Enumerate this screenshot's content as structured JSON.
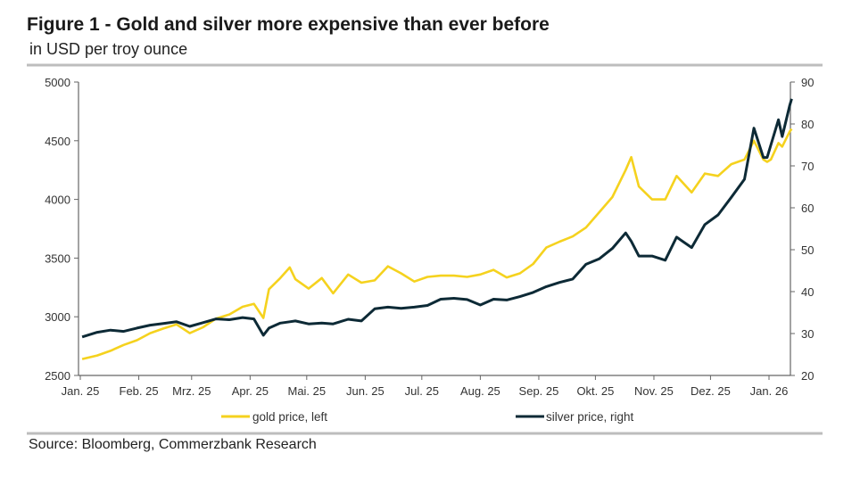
{
  "chart_data": {
    "type": "line",
    "title": "Figure 1 - Gold and silver more expensive than ever before",
    "subtitle": "in USD per troy ounce",
    "source": "Source: Bloomberg, Commerzbank Research",
    "x_tick_labels": [
      "Jan. 25",
      "Feb. 25",
      "Mrz. 25",
      "Apr. 25",
      "Mai. 25",
      "Jun. 25",
      "Jul. 25",
      "Aug. 25",
      "Sep. 25",
      "Okt. 25",
      "Nov. 25",
      "Dez. 25",
      "Jan. 26"
    ],
    "x_tick_dates": [
      "2025-01-01",
      "2025-02-01",
      "2025-03-01",
      "2025-04-01",
      "2025-05-01",
      "2025-06-01",
      "2025-07-01",
      "2025-08-01",
      "2025-09-01",
      "2025-10-01",
      "2025-11-01",
      "2025-12-01",
      "2026-01-01"
    ],
    "y_left": {
      "ticks": [
        2500,
        3000,
        3500,
        4000,
        4500,
        5000
      ],
      "range": [
        2500,
        5000
      ]
    },
    "y_right": {
      "ticks": [
        20,
        30,
        40,
        50,
        60,
        70,
        80,
        90
      ],
      "range": [
        20,
        90
      ]
    },
    "grid": false,
    "legend_position": "bottom",
    "x": [
      "2025-01-02",
      "2025-01-10",
      "2025-01-17",
      "2025-01-24",
      "2025-01-31",
      "2025-02-07",
      "2025-02-14",
      "2025-02-21",
      "2025-02-28",
      "2025-03-07",
      "2025-03-14",
      "2025-03-21",
      "2025-03-28",
      "2025-04-03",
      "2025-04-08",
      "2025-04-11",
      "2025-04-17",
      "2025-04-22",
      "2025-04-25",
      "2025-05-02",
      "2025-05-09",
      "2025-05-15",
      "2025-05-23",
      "2025-05-30",
      "2025-06-06",
      "2025-06-13",
      "2025-06-20",
      "2025-06-27",
      "2025-07-04",
      "2025-07-11",
      "2025-07-18",
      "2025-07-25",
      "2025-08-01",
      "2025-08-08",
      "2025-08-15",
      "2025-08-22",
      "2025-08-29",
      "2025-09-05",
      "2025-09-12",
      "2025-09-19",
      "2025-09-26",
      "2025-10-03",
      "2025-10-10",
      "2025-10-17",
      "2025-10-20",
      "2025-10-24",
      "2025-10-31",
      "2025-11-07",
      "2025-11-13",
      "2025-11-21",
      "2025-11-28",
      "2025-12-05",
      "2025-12-12",
      "2025-12-19",
      "2025-12-24",
      "2025-12-29",
      "2025-12-31",
      "2026-01-02",
      "2026-01-06",
      "2026-01-08",
      "2026-01-12",
      "2026-01-13"
    ],
    "series": [
      {
        "name": "gold price, left",
        "axis": "left",
        "color": "#f5d21e",
        "values": [
          2640,
          2670,
          2710,
          2760,
          2800,
          2860,
          2900,
          2935,
          2860,
          2910,
          2985,
          3020,
          3085,
          3110,
          2990,
          3235,
          3330,
          3420,
          3320,
          3240,
          3330,
          3200,
          3360,
          3290,
          3310,
          3430,
          3370,
          3300,
          3340,
          3350,
          3350,
          3340,
          3360,
          3400,
          3335,
          3370,
          3450,
          3590,
          3640,
          3685,
          3760,
          3890,
          4020,
          4250,
          4360,
          4110,
          4000,
          4000,
          4200,
          4060,
          4220,
          4200,
          4300,
          4340,
          4500,
          4340,
          4320,
          4340,
          4480,
          4450,
          4580,
          4600
        ]
      },
      {
        "name": "silver price, right",
        "axis": "right",
        "color": "#0d2a36",
        "values": [
          29.2,
          30.3,
          30.8,
          30.5,
          31.3,
          32.0,
          32.4,
          32.8,
          31.7,
          32.6,
          33.5,
          33.3,
          33.8,
          33.5,
          29.6,
          31.3,
          32.5,
          32.8,
          33.0,
          32.3,
          32.5,
          32.3,
          33.4,
          33.0,
          35.9,
          36.3,
          36.0,
          36.3,
          36.7,
          38.2,
          38.4,
          38.1,
          36.8,
          38.2,
          38.0,
          38.8,
          39.8,
          41.2,
          42.2,
          43.0,
          46.5,
          47.8,
          50.3,
          54.0,
          52.0,
          48.5,
          48.5,
          47.5,
          53.0,
          50.5,
          56.0,
          58.3,
          62.5,
          66.8,
          79.0,
          72.0,
          72.0,
          75.0,
          81.0,
          77.0,
          84.5,
          86.0
        ]
      }
    ]
  }
}
